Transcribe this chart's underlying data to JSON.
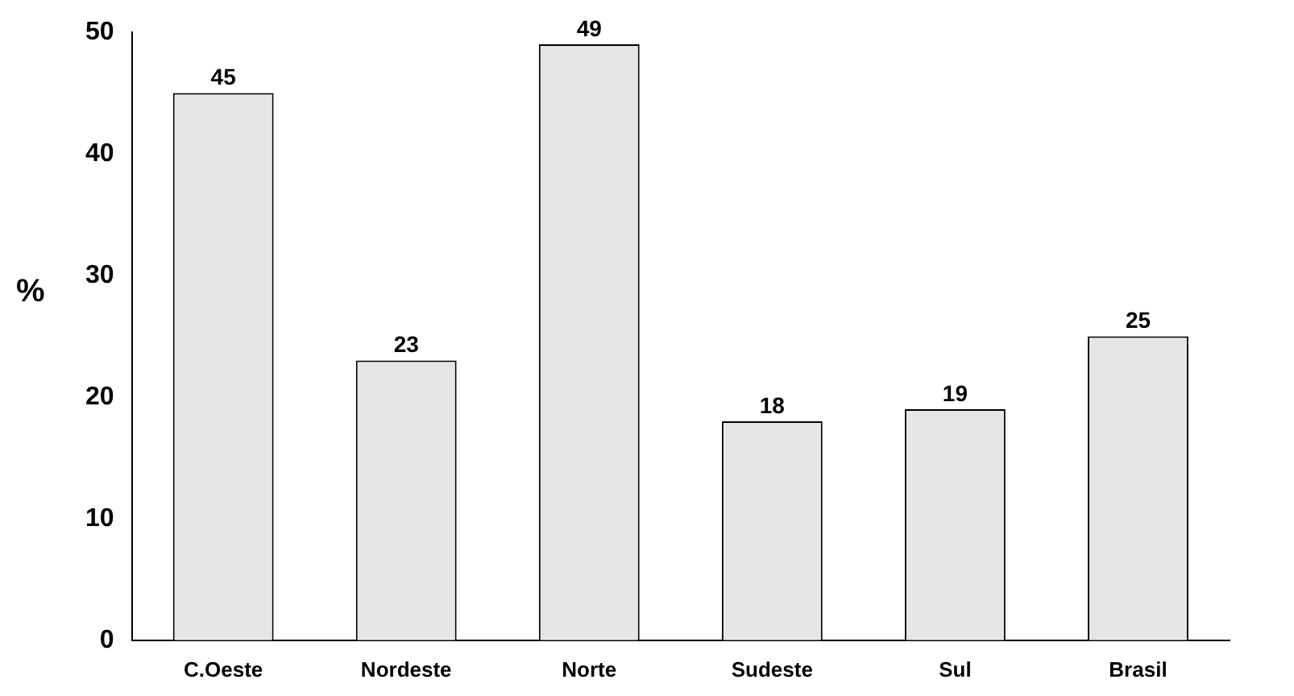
{
  "chart_data": {
    "type": "bar",
    "ylabel": "%",
    "categories": [
      "C.Oeste",
      "Nordeste",
      "Norte",
      "Sudeste",
      "Sul",
      "Brasil"
    ],
    "values": [
      45,
      23,
      49,
      18,
      19,
      25
    ],
    "color": "#e6e6e6",
    "ylim": [
      0,
      50
    ],
    "yticks": [
      0,
      10,
      20,
      30,
      40,
      50
    ],
    "grid": false,
    "legend": false,
    "data_labels": true
  }
}
